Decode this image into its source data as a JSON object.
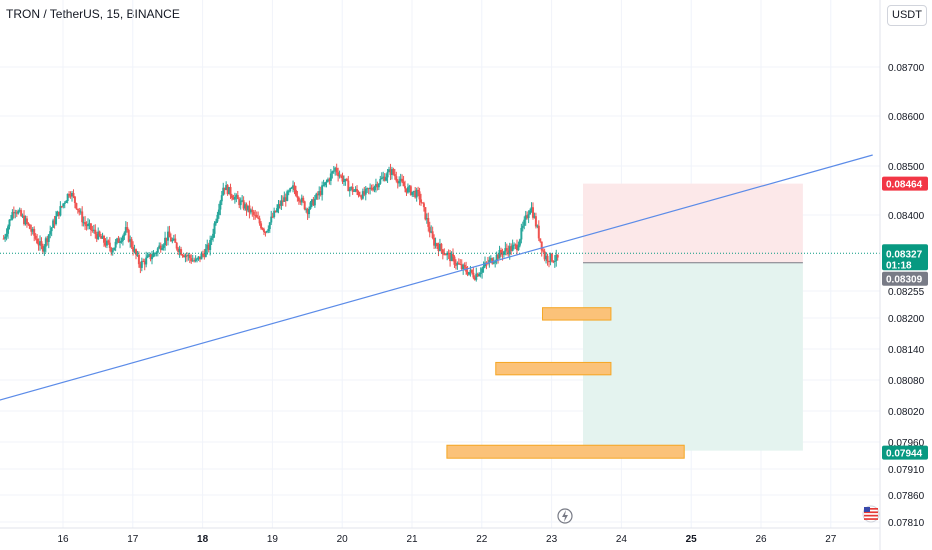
{
  "header": {
    "title": "TRON / TetherUS, 15, BINANCE",
    "currency_button": "USDT"
  },
  "colors": {
    "up": "#26a69a",
    "down": "#ef5350",
    "trendline": "#5b8be8",
    "stop_zone": "#fce8e9",
    "target_zone": "#e4f3ef",
    "order_box": "#fbc279",
    "order_border": "#f5a623",
    "stop_tag": "#f23645",
    "target_tag": "#089981",
    "current_tag": "#089981",
    "entry_tag": "#787b86"
  },
  "chart_data": {
    "type": "candlestick",
    "title": "TRON / TetherUS, 15, BINANCE",
    "ylim": [
      0.07775,
      0.0887
    ],
    "y_axis_ticks": [
      "0.08700",
      "0.08600",
      "0.08500",
      "0.08400",
      "0.08255",
      "0.08200",
      "0.08140",
      "0.08080",
      "0.08020",
      "0.07960",
      "0.07910",
      "0.07860",
      "0.07810"
    ],
    "x_axis_ticks": [
      {
        "label": "16",
        "bold": false
      },
      {
        "label": "17",
        "bold": false
      },
      {
        "label": "18",
        "bold": true
      },
      {
        "label": "19",
        "bold": false
      },
      {
        "label": "20",
        "bold": false
      },
      {
        "label": "21",
        "bold": false
      },
      {
        "label": "22",
        "bold": false
      },
      {
        "label": "23",
        "bold": false
      },
      {
        "label": "24",
        "bold": false
      },
      {
        "label": "25",
        "bold": true
      },
      {
        "label": "26",
        "bold": false
      },
      {
        "label": "27",
        "bold": false
      }
    ],
    "price_path_day": [
      15.15,
      15.3,
      15.5,
      15.7,
      15.9,
      16.1,
      16.3,
      16.5,
      16.7,
      16.9,
      17.1,
      17.3,
      17.5,
      17.7,
      17.9,
      18.1,
      18.3,
      18.5,
      18.7,
      18.9,
      19.1,
      19.3,
      19.5,
      19.7,
      19.9,
      20.1,
      20.3,
      20.5,
      20.7,
      20.9,
      21.1,
      21.3,
      21.5,
      21.7,
      21.9,
      22.1,
      22.3,
      22.5,
      22.7,
      22.9,
      23.1
    ],
    "price_path": [
      0.08355,
      0.08415,
      0.0838,
      0.08335,
      0.08395,
      0.0845,
      0.08385,
      0.0836,
      0.08335,
      0.0837,
      0.08305,
      0.08325,
      0.0836,
      0.0833,
      0.0831,
      0.0834,
      0.0846,
      0.0843,
      0.08405,
      0.0837,
      0.0842,
      0.08455,
      0.0841,
      0.0845,
      0.08495,
      0.08455,
      0.0844,
      0.08465,
      0.0849,
      0.08455,
      0.0844,
      0.0835,
      0.08325,
      0.083,
      0.08285,
      0.0831,
      0.0833,
      0.0834,
      0.0842,
      0.0832,
      0.08315
    ],
    "annotations": {
      "trendline": {
        "x1_day": 14.8,
        "y1": 0.0803,
        "x2_day": 27.6,
        "y2": 0.08522
      },
      "short_position": {
        "x1_day": 23.45,
        "x2_day": 26.6,
        "entry": 0.08309,
        "stop": 0.08464,
        "target": 0.07944
      },
      "order_boxes": [
        {
          "x1_day": 22.87,
          "x2_day": 23.85,
          "y_top": 0.08221,
          "y_bottom": 0.08196
        },
        {
          "x1_day": 22.2,
          "x2_day": 23.85,
          "y_top": 0.08114,
          "y_bottom": 0.0809
        },
        {
          "x1_day": 21.5,
          "x2_day": 24.9,
          "y_top": 0.07954,
          "y_bottom": 0.0793
        }
      ],
      "current_price": 0.08327
    }
  },
  "price_tags": {
    "stop": "0.08464",
    "current": "0.08327",
    "countdown": "01:18",
    "entry": "0.08309",
    "target": "0.07944"
  }
}
